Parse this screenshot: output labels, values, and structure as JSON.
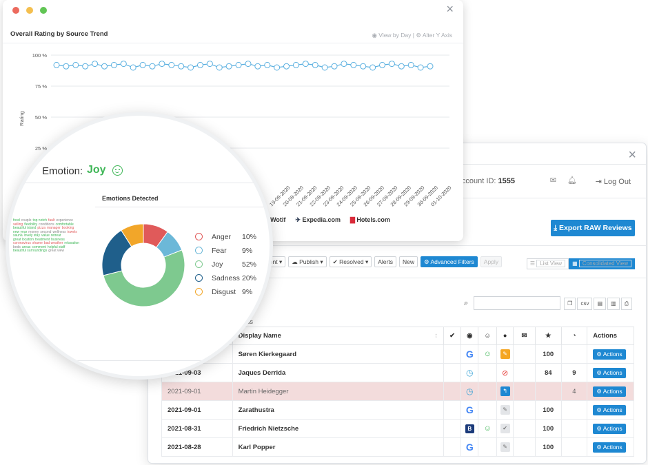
{
  "window_back": {
    "account_label": "Account ID:",
    "account_id": "1555",
    "logout": "Log Out",
    "export_button": "Export RAW Reviews",
    "filters": [
      "entiment",
      "Publish",
      "Resolved",
      "Alerts",
      "New",
      "Advanced Filters",
      "Apply"
    ],
    "view_list": "List View",
    "view_consolidated": "Consolidated View",
    "csv": "csv",
    "records_label": "cords",
    "columns": {
      "display_name": "Display Name",
      "actions": "Actions"
    },
    "rows": [
      {
        "date": "",
        "name": "Søren Kierkegaard",
        "rating": "100",
        "extra": "",
        "highlight": false
      },
      {
        "date": "2021-09-03",
        "name": "Jaques Derrida",
        "rating": "84",
        "extra": "9",
        "highlight": false
      },
      {
        "date": "2021-09-01",
        "name": "Martin Heidegger",
        "rating": "",
        "extra": "4",
        "highlight": true
      },
      {
        "date": "2021-09-01",
        "name": "Zarathustra",
        "rating": "100",
        "extra": "",
        "highlight": false
      },
      {
        "date": "2021-08-31",
        "name": "Friedrich Nietzsche",
        "rating": "100",
        "extra": "",
        "highlight": false
      },
      {
        "date": "2021-08-28",
        "name": "Karl Popper",
        "rating": "100",
        "extra": "",
        "highlight": false
      }
    ],
    "action_label": "Actions"
  },
  "window_front": {
    "title": "Overall Rating by Source Trend",
    "view_by": "View by Day",
    "alter_axis": "Alter Y Axis",
    "legend": [
      {
        "name": "Wotif",
        "color": "#3fb657"
      },
      {
        "name": "Expedia.com",
        "color": "#1b2a44"
      },
      {
        "name": "Hotels.com",
        "color": "#d92b3a"
      }
    ]
  },
  "chart_data": {
    "type": "line",
    "ylabel": "Rating",
    "yticks": [
      "100 %",
      "75 %",
      "50 %",
      "25 %"
    ],
    "xticks": [
      "19-09-2020",
      "20-09-2020",
      "21-09-2020",
      "22-09-2020",
      "23-09-2020",
      "24-09-2020",
      "25-09-2020",
      "26-09-2020",
      "27-09-2020",
      "28-09-2020",
      "29-09-2020",
      "30-09-2020",
      "01-10-2020"
    ],
    "series": [
      {
        "name": "Overall",
        "color": "#5bb0e0",
        "values": [
          92,
          91,
          92,
          91,
          93,
          91,
          92,
          93,
          90,
          92,
          91,
          93,
          92,
          91,
          90,
          92,
          93,
          90,
          91,
          92,
          93,
          91,
          92,
          90,
          91,
          92,
          93,
          92,
          90,
          91,
          93,
          92,
          91,
          90,
          92,
          93,
          91,
          92,
          90,
          91
        ]
      }
    ]
  },
  "emotions": {
    "title": "Emotion:",
    "value": "Joy",
    "detected_title": "Emotions Detected",
    "items": [
      {
        "name": "Anger",
        "pct": "10%",
        "value": 10,
        "color": "#e05a5a"
      },
      {
        "name": "Fear",
        "pct": "9%",
        "value": 9,
        "color": "#6cb8d8"
      },
      {
        "name": "Joy",
        "pct": "52%",
        "value": 52,
        "color": "#7ec98f"
      },
      {
        "name": "Sadness",
        "pct": "20%",
        "value": 20,
        "color": "#1f5f8b"
      },
      {
        "name": "Disgust",
        "pct": "9%",
        "value": 9,
        "color": "#f2a629"
      }
    ],
    "wordcloud": [
      {
        "w": "food",
        "c": "#3fb657"
      },
      {
        "w": "couple",
        "c": "#888"
      },
      {
        "w": "top notch",
        "c": "#3fb657"
      },
      {
        "w": "fault",
        "c": "#e05a5a"
      },
      {
        "w": "experience",
        "c": "#888"
      },
      {
        "w": "selling",
        "c": "#e05a5a"
      },
      {
        "w": "flexibility",
        "c": "#3fb657"
      },
      {
        "w": "conditions",
        "c": "#888"
      },
      {
        "w": "comfortable",
        "c": "#3fb657"
      },
      {
        "w": "beautiful island",
        "c": "#3fb657"
      },
      {
        "w": "pizza",
        "c": "#e05a5a"
      },
      {
        "w": "manager",
        "c": "#e05a5a"
      },
      {
        "w": "booking",
        "c": "#e05a5a"
      },
      {
        "w": "new year",
        "c": "#3fb657"
      },
      {
        "w": "money",
        "c": "#888"
      },
      {
        "w": "second",
        "c": "#888"
      },
      {
        "w": "wellness",
        "c": "#888"
      },
      {
        "w": "towels",
        "c": "#e05a5a"
      },
      {
        "w": "sauna",
        "c": "#3fb657"
      },
      {
        "w": "lovely stay",
        "c": "#3fb657"
      },
      {
        "w": "value",
        "c": "#3fb657"
      },
      {
        "w": "retreat",
        "c": "#3fb657"
      },
      {
        "w": "great location",
        "c": "#3fb657"
      },
      {
        "w": "treatment",
        "c": "#3fb657"
      },
      {
        "w": "business",
        "c": "#3fb657"
      },
      {
        "w": "coronavirus",
        "c": "#e05a5a"
      },
      {
        "w": "shame",
        "c": "#e05a5a"
      },
      {
        "w": "bad weather",
        "c": "#e05a5a"
      },
      {
        "w": "relaxation",
        "c": "#3fb657"
      },
      {
        "w": "beds",
        "c": "#888"
      },
      {
        "w": "areas",
        "c": "#3fb657"
      },
      {
        "w": "comment",
        "c": "#3fb657"
      },
      {
        "w": "helpful staff",
        "c": "#3fb657"
      },
      {
        "w": "beautiful surroundings",
        "c": "#3fb657"
      },
      {
        "w": "great view",
        "c": "#888"
      }
    ]
  }
}
